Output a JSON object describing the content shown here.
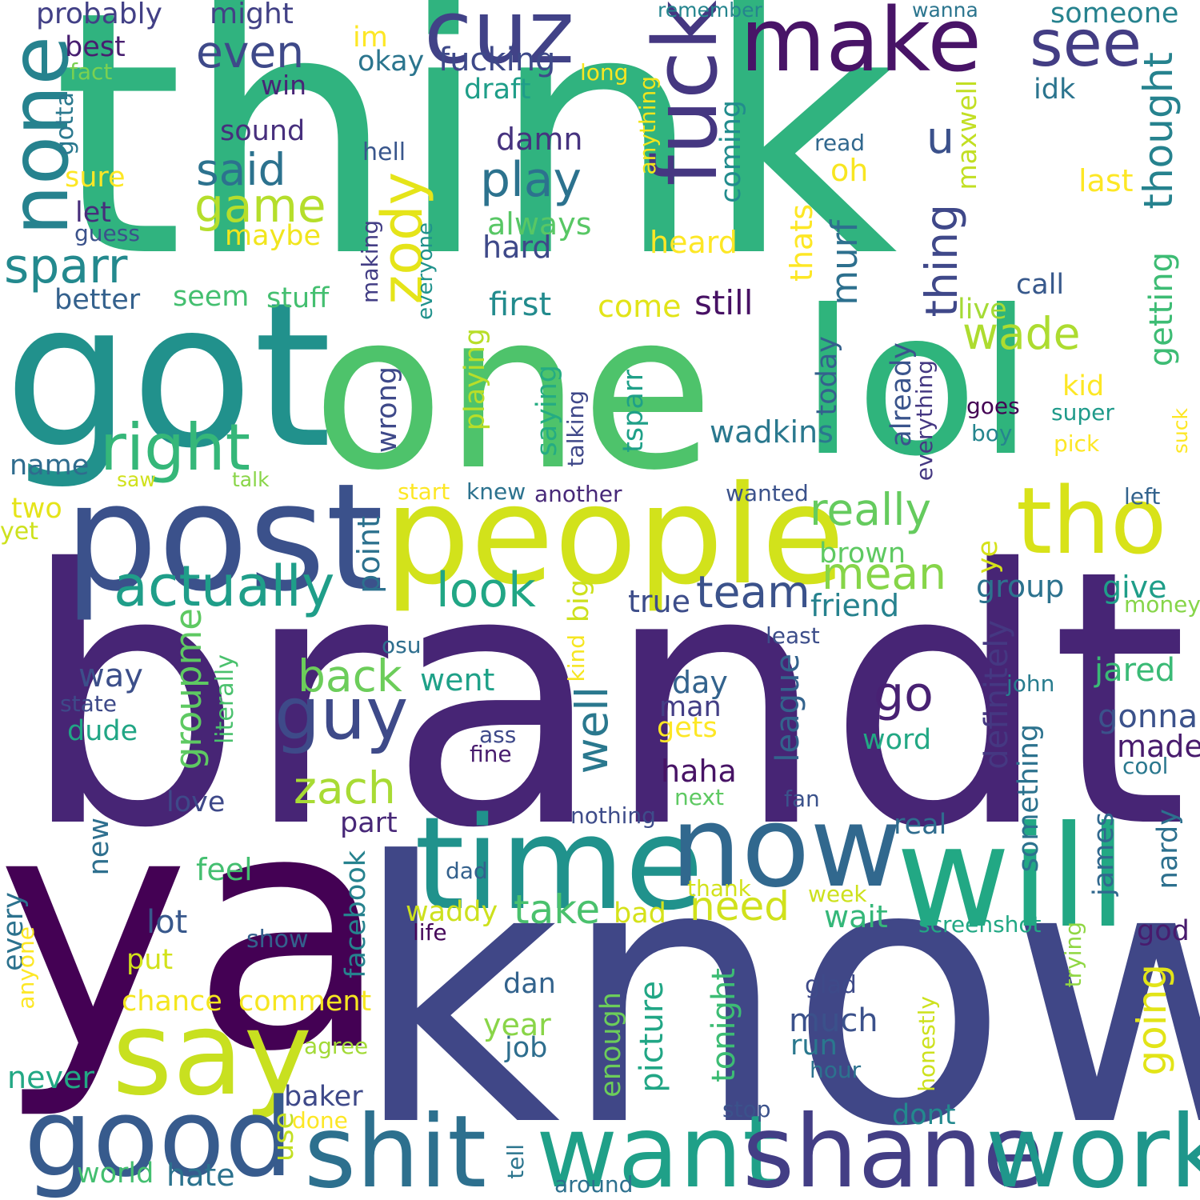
{
  "words": [
    {
      "text": "think",
      "color": "#30b37f",
      "rotate": false
    },
    {
      "text": "brandt",
      "color": "#472575",
      "rotate": false
    },
    {
      "text": "know",
      "color": "#404787",
      "rotate": false
    },
    {
      "text": "ya",
      "color": "#440154",
      "rotate": false
    },
    {
      "text": "one",
      "color": "#4ec36b",
      "rotate": false
    },
    {
      "text": "got",
      "color": "#21918c",
      "rotate": false
    },
    {
      "text": "lol",
      "color": "#2fb47c",
      "rotate": false
    },
    {
      "text": "post",
      "color": "#3b518b",
      "rotate": false
    },
    {
      "text": "people",
      "color": "#d2e21b",
      "rotate": false
    },
    {
      "text": "tho",
      "color": "#d8e219",
      "rotate": false
    },
    {
      "text": "will",
      "color": "#22a884",
      "rotate": false
    },
    {
      "text": "time",
      "color": "#20928c",
      "rotate": false
    },
    {
      "text": "now",
      "color": "#31688e",
      "rotate": false
    },
    {
      "text": "say",
      "color": "#c8e020",
      "rotate": false
    },
    {
      "text": "good",
      "color": "#375b8d",
      "rotate": false
    },
    {
      "text": "shit",
      "color": "#2d708e",
      "rotate": false
    },
    {
      "text": "want",
      "color": "#1fa088",
      "rotate": false
    },
    {
      "text": "shane",
      "color": "#433e85",
      "rotate": false
    },
    {
      "text": "work",
      "color": "#1f968b",
      "rotate": false
    },
    {
      "text": "make",
      "color": "#481467",
      "rotate": false
    },
    {
      "text": "cuz",
      "color": "#414287",
      "rotate": false
    },
    {
      "text": "fuck",
      "color": "#453781",
      "rotate": false
    },
    {
      "text": "see",
      "color": "#433d84",
      "rotate": false
    },
    {
      "text": "none",
      "color": "#26828e",
      "rotate": false
    },
    {
      "text": "right",
      "color": "#35b779",
      "rotate": false
    },
    {
      "text": "guy",
      "color": "#3e4a89",
      "rotate": false
    },
    {
      "text": "actually",
      "color": "#1f9e89",
      "rotate": false
    },
    {
      "text": "sparr",
      "color": "#23898e",
      "rotate": false
    },
    {
      "text": "zody",
      "color": "#e5e419",
      "rotate": false
    },
    {
      "text": "play",
      "color": "#2c728e",
      "rotate": false
    },
    {
      "text": "said",
      "color": "#2c728e",
      "rotate": false
    },
    {
      "text": "game",
      "color": "#b5de2b",
      "rotate": false
    },
    {
      "text": "even",
      "color": "#3e4989",
      "rotate": false
    },
    {
      "text": "thing",
      "color": "#3f4889",
      "rotate": false
    },
    {
      "text": "murf",
      "color": "#2d708e",
      "rotate": false
    },
    {
      "text": "thought",
      "color": "#26828e",
      "rotate": false
    },
    {
      "text": "really",
      "color": "#65cb5e",
      "rotate": false
    },
    {
      "text": "mean",
      "color": "#86d549",
      "rotate": false
    },
    {
      "text": "team",
      "color": "#3b528b",
      "rotate": false
    },
    {
      "text": "look",
      "color": "#21a685",
      "rotate": false
    },
    {
      "text": "back",
      "color": "#6ccd5a",
      "rotate": false
    },
    {
      "text": "zach",
      "color": "#a8db34",
      "rotate": false
    },
    {
      "text": "go",
      "color": "#482173",
      "rotate": false
    },
    {
      "text": "well",
      "color": "#2a788e",
      "rotate": false
    },
    {
      "text": "take",
      "color": "#4ac16d",
      "rotate": false
    },
    {
      "text": "need",
      "color": "#d0e11c",
      "rotate": false
    },
    {
      "text": "going",
      "color": "#e2e418",
      "rotate": false
    },
    {
      "text": "wade",
      "color": "#addc30",
      "rotate": false
    },
    {
      "text": "groupme",
      "color": "#5ec962",
      "rotate": false
    },
    {
      "text": "fucking",
      "color": "#3e4989",
      "rotate": false
    },
    {
      "text": "probably",
      "color": "#424086",
      "rotate": false
    },
    {
      "text": "might",
      "color": "#424186",
      "rotate": false
    },
    {
      "text": "best",
      "color": "#481f70",
      "rotate": false
    },
    {
      "text": "fact",
      "color": "#7ad151",
      "rotate": false
    },
    {
      "text": "win",
      "color": "#482576",
      "rotate": false
    },
    {
      "text": "gotta",
      "color": "#2a788e",
      "rotate": false
    },
    {
      "text": "sure",
      "color": "#fde725",
      "rotate": false
    },
    {
      "text": "let",
      "color": "#472d7b",
      "rotate": false
    },
    {
      "text": "guess",
      "color": "#3b528b",
      "rotate": false
    },
    {
      "text": "maybe",
      "color": "#f1e51d",
      "rotate": false
    },
    {
      "text": "better",
      "color": "#34618d",
      "rotate": false
    },
    {
      "text": "seem",
      "color": "#44bf70",
      "rotate": false
    },
    {
      "text": "stuff",
      "color": "#44bf70",
      "rotate": false
    },
    {
      "text": "name",
      "color": "#2f6c8e",
      "rotate": false
    },
    {
      "text": "saw",
      "color": "#d0e11c",
      "rotate": false
    },
    {
      "text": "talk",
      "color": "#89d548",
      "rotate": false
    },
    {
      "text": "two",
      "color": "#e5e419",
      "rotate": false
    },
    {
      "text": "yet",
      "color": "#cde11d",
      "rotate": false
    },
    {
      "text": "im",
      "color": "#fde725",
      "rotate": false
    },
    {
      "text": "okay",
      "color": "#2b758e",
      "rotate": false
    },
    {
      "text": "draft",
      "color": "#1f9e89",
      "rotate": false
    },
    {
      "text": "long",
      "color": "#f8e621",
      "rotate": false
    },
    {
      "text": "sound",
      "color": "#472f7d",
      "rotate": false
    },
    {
      "text": "hell",
      "color": "#39568c",
      "rotate": false
    },
    {
      "text": "damn",
      "color": "#46337f",
      "rotate": false
    },
    {
      "text": "always",
      "color": "#58c765",
      "rotate": false
    },
    {
      "text": "hard",
      "color": "#3e4989",
      "rotate": false
    },
    {
      "text": "first",
      "color": "#228b8d",
      "rotate": false
    },
    {
      "text": "come",
      "color": "#e2e418",
      "rotate": false
    },
    {
      "text": "still",
      "color": "#471164",
      "rotate": false
    },
    {
      "text": "remember",
      "color": "#25858e",
      "rotate": false
    },
    {
      "text": "wanna",
      "color": "#2b758e",
      "rotate": false
    },
    {
      "text": "someone",
      "color": "#26828e",
      "rotate": false
    },
    {
      "text": "idk",
      "color": "#2b748e",
      "rotate": false
    },
    {
      "text": "read",
      "color": "#31688e",
      "rotate": false
    },
    {
      "text": "u",
      "color": "#3b518b",
      "rotate": false
    },
    {
      "text": "oh",
      "color": "#f8e621",
      "rotate": false
    },
    {
      "text": "last",
      "color": "#fde725",
      "rotate": false
    },
    {
      "text": "heard",
      "color": "#fde725",
      "rotate": false
    },
    {
      "text": "call",
      "color": "#38598c",
      "rotate": false
    },
    {
      "text": "live",
      "color": "#a5db36",
      "rotate": false
    },
    {
      "text": "getting",
      "color": "#3dbc74",
      "rotate": false
    },
    {
      "text": "anything",
      "color": "#f1e51d",
      "rotate": false
    },
    {
      "text": "coming",
      "color": "#228c8d",
      "rotate": false
    },
    {
      "text": "maxwell",
      "color": "#c2df23",
      "rotate": false
    },
    {
      "text": "thats",
      "color": "#fde725",
      "rotate": false
    },
    {
      "text": "making",
      "color": "#433e85",
      "rotate": false
    },
    {
      "text": "everyone",
      "color": "#20928c",
      "rotate": false
    },
    {
      "text": "kid",
      "color": "#fde725",
      "rotate": false
    },
    {
      "text": "goes",
      "color": "#440154",
      "rotate": false
    },
    {
      "text": "super",
      "color": "#1f9a8a",
      "rotate": false
    },
    {
      "text": "boy",
      "color": "#25858e",
      "rotate": false
    },
    {
      "text": "pick",
      "color": "#fde725",
      "rotate": false
    },
    {
      "text": "suck",
      "color": "#fde725",
      "rotate": false
    },
    {
      "text": "wadkins",
      "color": "#2a788e",
      "rotate": false
    },
    {
      "text": "today",
      "color": "#34618d",
      "rotate": false
    },
    {
      "text": "already",
      "color": "#3a548c",
      "rotate": false
    },
    {
      "text": "everything",
      "color": "#453882",
      "rotate": false
    },
    {
      "text": "wrong",
      "color": "#3e4989",
      "rotate": false
    },
    {
      "text": "playing",
      "color": "#b8de29",
      "rotate": false
    },
    {
      "text": "saying",
      "color": "#25ac82",
      "rotate": false
    },
    {
      "text": "talking",
      "color": "#3f4889",
      "rotate": false
    },
    {
      "text": "tsparr",
      "color": "#1fa088",
      "rotate": false
    },
    {
      "text": "start",
      "color": "#fde725",
      "rotate": false
    },
    {
      "text": "knew",
      "color": "#2c728e",
      "rotate": false
    },
    {
      "text": "another",
      "color": "#482979",
      "rotate": false
    },
    {
      "text": "wanted",
      "color": "#3b528b",
      "rotate": false
    },
    {
      "text": "left",
      "color": "#33638d",
      "rotate": false
    },
    {
      "text": "brown",
      "color": "#5ec962",
      "rotate": false
    },
    {
      "text": "ye",
      "color": "#d5e21a",
      "rotate": false
    },
    {
      "text": "point",
      "color": "#2c718e",
      "rotate": false
    },
    {
      "text": "true",
      "color": "#3d4d8a",
      "rotate": false
    },
    {
      "text": "friend",
      "color": "#26828e",
      "rotate": false
    },
    {
      "text": "group",
      "color": "#2c728e",
      "rotate": false
    },
    {
      "text": "give",
      "color": "#1f9e89",
      "rotate": false
    },
    {
      "text": "money",
      "color": "#86d549",
      "rotate": false
    },
    {
      "text": "big",
      "color": "#cde11d",
      "rotate": false
    },
    {
      "text": "kind",
      "color": "#f6e620",
      "rotate": false
    },
    {
      "text": "least",
      "color": "#3d4e8a",
      "rotate": false
    },
    {
      "text": "osu",
      "color": "#2e6e8e",
      "rotate": false
    },
    {
      "text": "way",
      "color": "#3c4f8a",
      "rotate": false
    },
    {
      "text": "state",
      "color": "#3e4a89",
      "rotate": false
    },
    {
      "text": "dude",
      "color": "#21a685",
      "rotate": false
    },
    {
      "text": "literally",
      "color": "#4ac16d",
      "rotate": false
    },
    {
      "text": "went",
      "color": "#1fa188",
      "rotate": false
    },
    {
      "text": "day",
      "color": "#33638d",
      "rotate": false
    },
    {
      "text": "man",
      "color": "#433e85",
      "rotate": false
    },
    {
      "text": "gets",
      "color": "#fde725",
      "rotate": false
    },
    {
      "text": "haha",
      "color": "#471365",
      "rotate": false
    },
    {
      "text": "league",
      "color": "#33638d",
      "rotate": false
    },
    {
      "text": "word",
      "color": "#22a884",
      "rotate": false
    },
    {
      "text": "definitely",
      "color": "#453882",
      "rotate": false
    },
    {
      "text": "jared",
      "color": "#3aba76",
      "rotate": false
    },
    {
      "text": "john",
      "color": "#287c8e",
      "rotate": false
    },
    {
      "text": "gonna",
      "color": "#3b528b",
      "rotate": false
    },
    {
      "text": "made",
      "color": "#481b6d",
      "rotate": false
    },
    {
      "text": "cool",
      "color": "#2a788e",
      "rotate": false
    },
    {
      "text": "ass",
      "color": "#3e4989",
      "rotate": false
    },
    {
      "text": "fine",
      "color": "#481c6e",
      "rotate": false
    },
    {
      "text": "love",
      "color": "#3e4989",
      "rotate": false
    },
    {
      "text": "part",
      "color": "#482878",
      "rotate": false
    },
    {
      "text": "nothing",
      "color": "#3e4c8a",
      "rotate": false
    },
    {
      "text": "next",
      "color": "#5ec962",
      "rotate": false
    },
    {
      "text": "fan",
      "color": "#3b528b",
      "rotate": false
    },
    {
      "text": "real",
      "color": "#2f6c8e",
      "rotate": false
    },
    {
      "text": "something",
      "color": "#2c728e",
      "rotate": false
    },
    {
      "text": "james",
      "color": "#31688e",
      "rotate": false
    },
    {
      "text": "nardy",
      "color": "#2d708e",
      "rotate": false
    },
    {
      "text": "new",
      "color": "#2e6f8e",
      "rotate": false
    },
    {
      "text": "feel",
      "color": "#44bf70",
      "rotate": false
    },
    {
      "text": "facebook",
      "color": "#26828e",
      "rotate": false
    },
    {
      "text": "lot",
      "color": "#38588c",
      "rotate": false
    },
    {
      "text": "every",
      "color": "#2c728e",
      "rotate": false
    },
    {
      "text": "anyone",
      "color": "#fde725",
      "rotate": false
    },
    {
      "text": "put",
      "color": "#d2e21b",
      "rotate": false
    },
    {
      "text": "show",
      "color": "#34618d",
      "rotate": false
    },
    {
      "text": "chance",
      "color": "#f4e61e",
      "rotate": false
    },
    {
      "text": "comment",
      "color": "#f6e620",
      "rotate": false
    },
    {
      "text": "dad",
      "color": "#34618d",
      "rotate": false
    },
    {
      "text": "waddy",
      "color": "#cde11d",
      "rotate": false
    },
    {
      "text": "bad",
      "color": "#d5e21a",
      "rotate": false
    },
    {
      "text": "life",
      "color": "#46075a",
      "rotate": false
    },
    {
      "text": "thank",
      "color": "#d2e21b",
      "rotate": false
    },
    {
      "text": "week",
      "color": "#cde11d",
      "rotate": false
    },
    {
      "text": "wait",
      "color": "#35b779",
      "rotate": false
    },
    {
      "text": "screenshot",
      "color": "#22a884",
      "rotate": false
    },
    {
      "text": "god",
      "color": "#481b6d",
      "rotate": false
    },
    {
      "text": "trying",
      "color": "#90d743",
      "rotate": false
    },
    {
      "text": "dan",
      "color": "#33638d",
      "rotate": false
    },
    {
      "text": "year",
      "color": "#89d548",
      "rotate": false
    },
    {
      "text": "job",
      "color": "#2e6e8e",
      "rotate": false
    },
    {
      "text": "enough",
      "color": "#6ccd5a",
      "rotate": false
    },
    {
      "text": "picture",
      "color": "#21a685",
      "rotate": false
    },
    {
      "text": "tonight",
      "color": "#3dbc74",
      "rotate": false
    },
    {
      "text": "glad",
      "color": "#3e4a89",
      "rotate": false
    },
    {
      "text": "much",
      "color": "#3b518b",
      "rotate": false
    },
    {
      "text": "run",
      "color": "#2a788e",
      "rotate": false
    },
    {
      "text": "hour",
      "color": "#2c728e",
      "rotate": false
    },
    {
      "text": "honestly",
      "color": "#cde11d",
      "rotate": false
    },
    {
      "text": "agree",
      "color": "#a2da37",
      "rotate": false
    },
    {
      "text": "never",
      "color": "#22a884",
      "rotate": false
    },
    {
      "text": "baker",
      "color": "#3e4989",
      "rotate": false
    },
    {
      "text": "use",
      "color": "#c2df23",
      "rotate": false
    },
    {
      "text": "done",
      "color": "#fde725",
      "rotate": false
    },
    {
      "text": "world",
      "color": "#44bf70",
      "rotate": false
    },
    {
      "text": "hate",
      "color": "#2c728e",
      "rotate": false
    },
    {
      "text": "stop",
      "color": "#3b528b",
      "rotate": false
    },
    {
      "text": "dont",
      "color": "#23898e",
      "rotate": false
    },
    {
      "text": "tell",
      "color": "#2b758e",
      "rotate": false
    },
    {
      "text": "around",
      "color": "#2d708e",
      "rotate": false
    }
  ]
}
